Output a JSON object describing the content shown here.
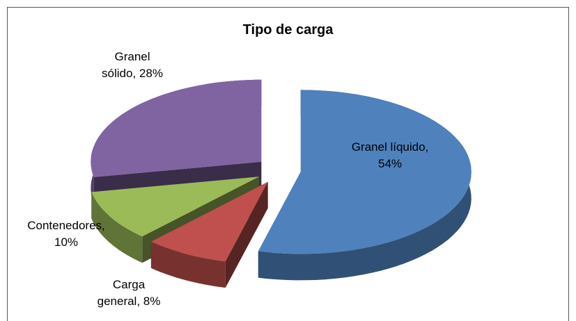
{
  "chart_data": {
    "type": "pie",
    "title": "Tipo de carga",
    "categories": [
      "Granel líquido",
      "Carga general",
      "Contenedores",
      "Granel sólido"
    ],
    "values": [
      54,
      8,
      10,
      28
    ],
    "value_labels": [
      "Granel líquido, 54%",
      "Carga general, 8%",
      "Contenedores, 10%",
      "Granel sólido, 28%"
    ],
    "colors": [
      "#4f81bd",
      "#c0504d",
      "#9bbb59",
      "#8064a2"
    ]
  }
}
